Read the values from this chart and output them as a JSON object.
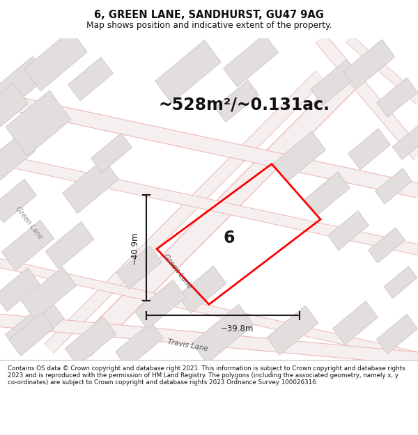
{
  "title": "6, GREEN LANE, SANDHURST, GU47 9AG",
  "subtitle": "Map shows position and indicative extent of the property.",
  "area_text": "~528m²/~0.131ac.",
  "dim_width": "~39.8m",
  "dim_height": "~40.9m",
  "property_label": "6",
  "footer_text": "Contains OS data © Crown copyright and database right 2021. This information is subject to Crown copyright and database rights 2023 and is reproduced with the permission of HM Land Registry. The polygons (including the associated geometry, namely x, y co-ordinates) are subject to Crown copyright and database rights 2023 Ordnance Survey 100026316.",
  "map_bg": "#f2eded",
  "building_fill": "#e2dede",
  "building_edge": "#d4c8c8",
  "road_pink": "#f0b8b8",
  "road_fill": "#f5efef",
  "property_color": "#ff0000",
  "dim_color": "#1a1a1a",
  "title_color": "#111111",
  "footer_color": "#111111",
  "white": "#ffffff"
}
